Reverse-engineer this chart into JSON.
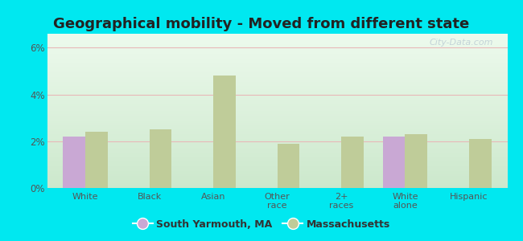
{
  "title": "Geographical mobility - Moved from different state",
  "categories": [
    "White",
    "Black",
    "Asian",
    "Other\nrace",
    "2+\nraces",
    "White\nalone",
    "Hispanic"
  ],
  "south_yarmouth": [
    2.2,
    0,
    0,
    0,
    0,
    2.2,
    0
  ],
  "massachusetts": [
    2.4,
    2.5,
    4.8,
    1.9,
    2.2,
    2.3,
    2.1
  ],
  "bar_color_sy": "#c9a8d4",
  "bar_color_ma": "#bfcc99",
  "ylim": [
    0,
    0.066
  ],
  "yticks": [
    0,
    0.02,
    0.04,
    0.06
  ],
  "yticklabels": [
    "0%",
    "2%",
    "4%",
    "6%"
  ],
  "outer_background": "#00e8f0",
  "legend_sy": "South Yarmouth, MA",
  "legend_ma": "Massachusetts",
  "title_fontsize": 13,
  "bar_width": 0.35,
  "grid_color": "#e8b8b8",
  "tick_color": "#555555",
  "watermark": "City-Data.com"
}
